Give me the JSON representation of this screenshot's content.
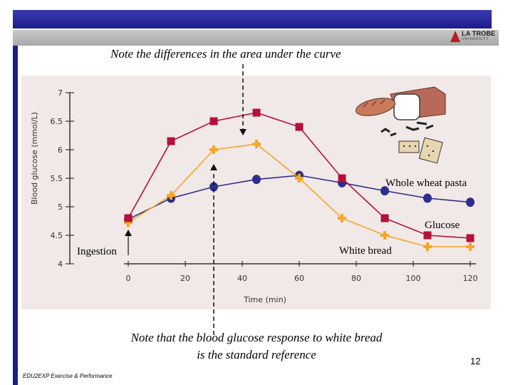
{
  "header": {
    "logo_name": "LA TROBE",
    "logo_sub": "UNIVERSITY"
  },
  "notes": {
    "top": "Note the differences in the area under the curve",
    "bottom_line1": "Note that the blood glucose response to white bread",
    "bottom_line2": "is the standard reference"
  },
  "footer": {
    "course": "EDU2EXP  Exercise & Performance",
    "slide_number": "12"
  },
  "chart_data": {
    "type": "line",
    "title": "",
    "xlabel": "Time (min)",
    "ylabel": "Blood glucose (mmol/L)",
    "xlim": [
      0,
      120
    ],
    "ylim": [
      4,
      7
    ],
    "x_ticks": [
      0,
      20,
      40,
      60,
      80,
      100,
      120
    ],
    "y_ticks": [
      4,
      4.5,
      5,
      5.5,
      6,
      6.5,
      7
    ],
    "y_tick_labels": [
      "4",
      "4.5",
      "5",
      "5.5",
      "6",
      "6.5",
      "7"
    ],
    "grid": false,
    "series": [
      {
        "name": "Glucose",
        "color": "#b4103a",
        "marker": "square",
        "points": [
          [
            0,
            4.8
          ],
          [
            15,
            6.15
          ],
          [
            30,
            6.5
          ],
          [
            45,
            6.65
          ],
          [
            60,
            6.4
          ],
          [
            75,
            5.5
          ],
          [
            90,
            4.8
          ],
          [
            105,
            4.5
          ],
          [
            120,
            4.45
          ]
        ]
      },
      {
        "name": "White bread",
        "color": "#f5a623",
        "marker": "plus",
        "points": [
          [
            0,
            4.72
          ],
          [
            15,
            5.2
          ],
          [
            30,
            6.0
          ],
          [
            45,
            6.1
          ],
          [
            60,
            5.5
          ],
          [
            75,
            4.8
          ],
          [
            90,
            4.5
          ],
          [
            105,
            4.3
          ],
          [
            120,
            4.3
          ]
        ]
      },
      {
        "name": "Whole wheat pasta",
        "color": "#2e2f8c",
        "marker": "circle",
        "points": [
          [
            0,
            4.78
          ],
          [
            15,
            5.15
          ],
          [
            30,
            5.35
          ],
          [
            45,
            5.48
          ],
          [
            60,
            5.55
          ],
          [
            75,
            5.42
          ],
          [
            90,
            5.28
          ],
          [
            105,
            5.15
          ],
          [
            120,
            5.08
          ]
        ]
      }
    ],
    "annotations": {
      "whole_wheat_pasta": "Whole wheat pasta",
      "glucose": "Glucose",
      "white_bread": "White bread",
      "ingestion": "Ingestion"
    }
  }
}
